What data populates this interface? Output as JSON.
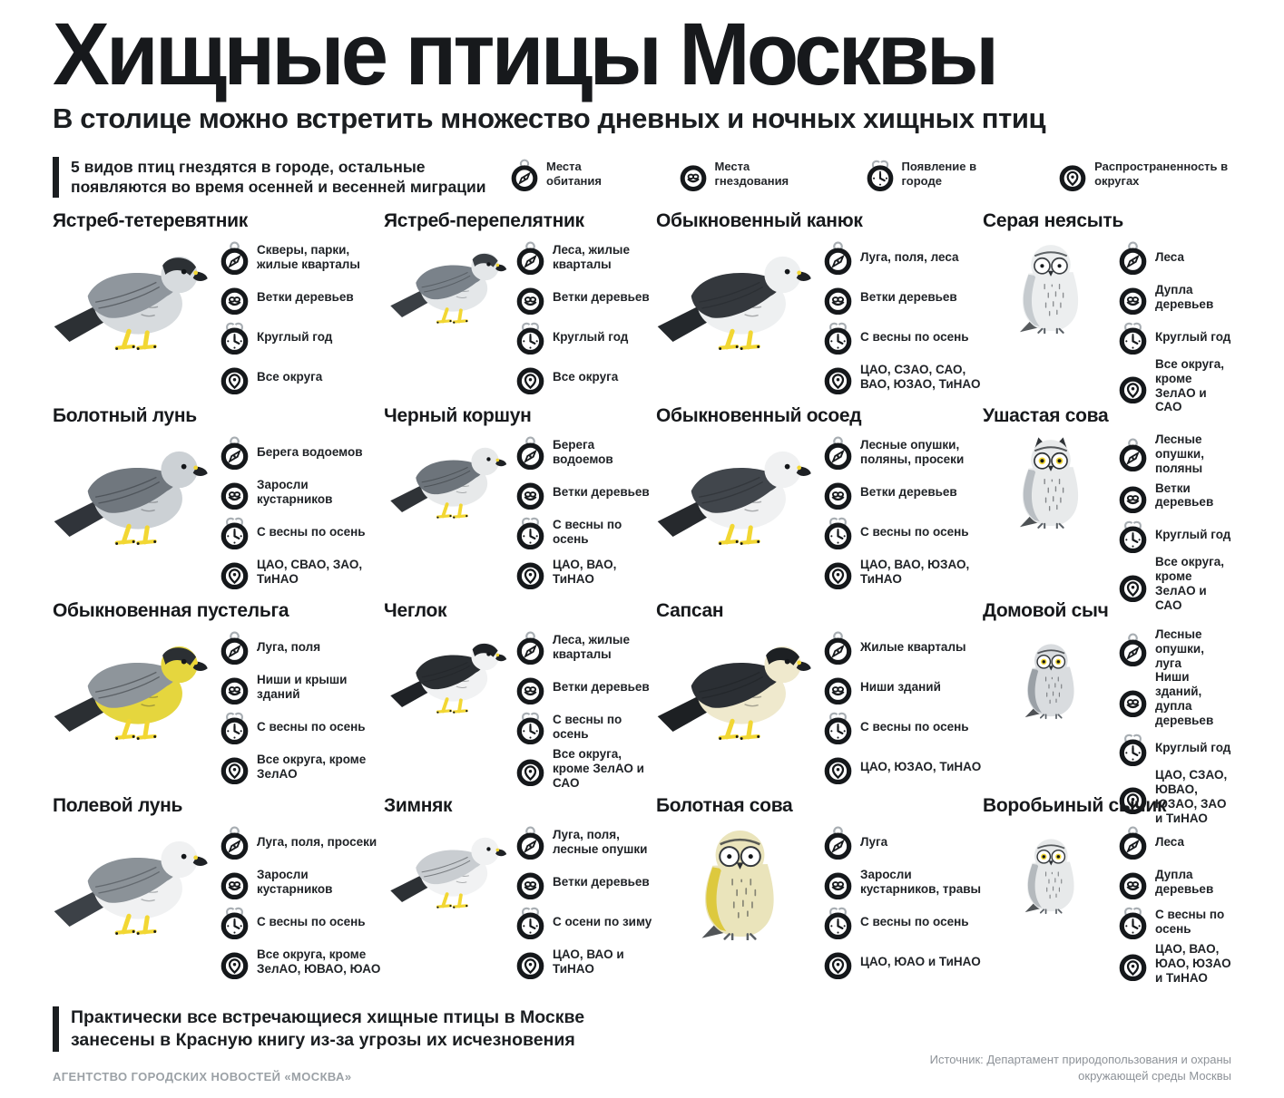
{
  "header": {
    "title": "Хищные птицы Москвы",
    "subtitle": "В столице можно встретить множество дневных и ночных хищных птиц",
    "note": "5 видов птиц гнездятся в городе, остальные появляются во время осенней и весенней миграции"
  },
  "legend": [
    {
      "icon": "compass-icon",
      "label": "Места обитания"
    },
    {
      "icon": "nest-icon",
      "label": "Места гнездования"
    },
    {
      "icon": "alarm-clock-icon",
      "label": "Появление в городе"
    },
    {
      "icon": "map-pin-icon",
      "label": "Распространенность в округах"
    }
  ],
  "palette": {
    "ink": "#1b1e21",
    "muted_gray": "#9ba1a6",
    "accent_yellow": "#f2d733"
  },
  "birds": [
    {
      "name": "Ястреб-тетеревятник",
      "art": {
        "kind": "hawk",
        "body": "#d7dbde",
        "wing": "#8f969d",
        "dark": "#2c3034",
        "accent": "#f2d733",
        "cap": true
      },
      "facts": {
        "habitat": "Скверы, парки, жилые кварталы",
        "nesting": "Ветки деревьев",
        "appearance": "Круглый год",
        "districts": "Все округа"
      }
    },
    {
      "name": "Ястреб-перепелятник",
      "art": {
        "kind": "hawk",
        "body": "#e4e7e9",
        "wing": "#7a828a",
        "dark": "#3a3f44",
        "accent": "#f2d733",
        "cap": true
      },
      "facts": {
        "habitat": "Леса, жилые кварталы",
        "nesting": "Ветки деревьев",
        "appearance": "Круглый год",
        "districts": "Все округа"
      }
    },
    {
      "name": "Обыкновенный канюк",
      "art": {
        "kind": "hawk",
        "body": "#eef0f1",
        "wing": "#34383d",
        "dark": "#24282c",
        "accent": "#f2d733",
        "cap": false
      },
      "facts": {
        "habitat": "Луга, поля, леса",
        "nesting": "Ветки деревьев",
        "appearance": "С весны по осень",
        "districts": "ЦАО, СЗАО, САО, ВАО, ЮЗАО, ТиНАО"
      }
    },
    {
      "name": "Серая неясыть",
      "art": {
        "kind": "owl",
        "body": "#eceeef",
        "wing": "#c6cbcf",
        "dark": "#3a3e42",
        "accent": "#f2d733",
        "iris": null,
        "eared": false
      },
      "facts": {
        "habitat": "Леса",
        "nesting": "Дупла деревьев",
        "appearance": "Круглый год",
        "districts": "Все округа, кроме ЗелАО и САО"
      }
    },
    {
      "name": "Болотный лунь",
      "art": {
        "kind": "hawk",
        "body": "#ccd1d5",
        "wing": "#70777e",
        "dark": "#30343a",
        "accent": "#f2d733",
        "cap": false
      },
      "facts": {
        "habitat": "Берега водоемов",
        "nesting": "Заросли кустарников",
        "appearance": "С весны по осень",
        "districts": "ЦАО, СВАО, ЗАО, ТиНАО"
      }
    },
    {
      "name": "Черный коршун",
      "art": {
        "kind": "hawk",
        "body": "#e7e9ea",
        "wing": "#6d747b",
        "dark": "#2f3337",
        "accent": "#f2d733",
        "cap": false
      },
      "facts": {
        "habitat": "Берега водоемов",
        "nesting": "Ветки деревьев",
        "appearance": "С весны по осень",
        "districts": "ЦАО, ВАО, ТиНАО"
      }
    },
    {
      "name": "Обыкновенный осоед",
      "art": {
        "kind": "hawk",
        "body": "#f0f1f2",
        "wing": "#41464c",
        "dark": "#26292d",
        "accent": "#f2d733",
        "cap": false
      },
      "facts": {
        "habitat": "Лесные опушки, поляны, просеки",
        "nesting": "Ветки деревьев",
        "appearance": "С весны по осень",
        "districts": "ЦАО, ВАО, ЮЗАО, ТиНАО"
      }
    },
    {
      "name": "Ушастая сова",
      "art": {
        "kind": "owl",
        "body": "#e8eaeb",
        "wing": "#b9bec3",
        "dark": "#2e3236",
        "accent": "#f2d733",
        "iris": "#f2d733",
        "eared": true
      },
      "facts": {
        "habitat": "Лесные опушки, поляны",
        "nesting": "Ветки деревьев",
        "appearance": "Круглый год",
        "districts": "Все округа, кроме ЗелАО и САО"
      }
    },
    {
      "name": "Обыкновенная пустельга",
      "art": {
        "kind": "hawk",
        "body": "#e5d63e",
        "wing": "#8e959b",
        "dark": "#2b2f33",
        "accent": "#f2d733",
        "cap": true
      },
      "facts": {
        "habitat": "Луга, поля",
        "nesting": "Ниши и крыши зданий",
        "appearance": "С весны по осень",
        "districts": "Все округа, кроме ЗелАО"
      }
    },
    {
      "name": "Чеглок",
      "art": {
        "kind": "hawk",
        "body": "#f1f2f3",
        "wing": "#2a2e32",
        "dark": "#1f2226",
        "accent": "#f2d733",
        "cap": true
      },
      "facts": {
        "habitat": "Леса, жилые кварталы",
        "nesting": "Ветки деревьев",
        "appearance": "С весны по осень",
        "districts": "Все округа, кроме ЗелАО и САО"
      }
    },
    {
      "name": "Сапсан",
      "art": {
        "kind": "hawk",
        "body": "#efe9cd",
        "wing": "#2b2f34",
        "dark": "#1d2023",
        "accent": "#f2d733",
        "cap": true
      },
      "facts": {
        "habitat": "Жилые кварталы",
        "nesting": "Ниши зданий",
        "appearance": "С весны по осень",
        "districts": "ЦАО, ЮЗАО, ТиНАО"
      }
    },
    {
      "name": "Домовой сыч",
      "art": {
        "kind": "owl-small",
        "body": "#d9dcdf",
        "wing": "#9aa0a6",
        "dark": "#2f3337",
        "accent": "#f2d733",
        "iris": "#f2d733",
        "eared": false
      },
      "facts": {
        "habitat": "Лесные опушки, луга",
        "nesting": "Ниши зданий, дупла деревьев",
        "appearance": "Круглый год",
        "districts": "ЦАО, СЗАО, ЮВАО, ЮЗАО, ЗАО и ТиНАО"
      }
    },
    {
      "name": "Полевой лунь",
      "art": {
        "kind": "hawk",
        "body": "#f0f1f2",
        "wing": "#8b9298",
        "dark": "#3c4147",
        "accent": "#f2d733",
        "cap": false
      },
      "facts": {
        "habitat": "Луга, поля, просеки",
        "nesting": "Заросли кустарников",
        "appearance": "С весны по осень",
        "districts": "Все округа, кроме ЗелАО, ЮВАО, ЮАО"
      }
    },
    {
      "name": "Зимняк",
      "art": {
        "kind": "hawk",
        "body": "#f1f2f3",
        "wing": "#c9cdd1",
        "dark": "#2c3034",
        "accent": "#f2d733",
        "cap": false
      },
      "facts": {
        "habitat": "Луга, поля, лесные опушки",
        "nesting": "Ветки деревьев",
        "appearance": "С осени по зиму",
        "districts": "ЦАО, ВАО и ТиНАО"
      }
    },
    {
      "name": "Болотная сова",
      "art": {
        "kind": "owl",
        "body": "#eae4bb",
        "wing": "#ddc93e",
        "dark": "#33373b",
        "accent": "#f2d733",
        "iris": null,
        "eared": false
      },
      "facts": {
        "habitat": "Луга",
        "nesting": "Заросли кустарников, травы",
        "appearance": "С весны по осень",
        "districts": "ЦАО, ЮАО и ТиНАО"
      }
    },
    {
      "name": "Воробьиный сычик",
      "art": {
        "kind": "owl-small",
        "body": "#e7e9ea",
        "wing": "#b4b9bd",
        "dark": "#33373b",
        "accent": "#f2d733",
        "iris": "#f2d733",
        "eared": false
      },
      "facts": {
        "habitat": "Леса",
        "nesting": "Дупла деревьев",
        "appearance": "С весны по осень",
        "districts": "ЦАО, ВАО, ЮАО, ЮЗАО и ТиНАО"
      }
    }
  ],
  "footer": {
    "note": "Практически все встречающиеся хищные птицы в Москве занесены в Красную книгу из-за угрозы их исчезновения",
    "agency": "АГЕНТСТВО ГОРОДСКИХ НОВОСТЕЙ «МОСКВА»",
    "source": "Источник: Департамент природопользования и охраны окружающей среды Москвы"
  }
}
